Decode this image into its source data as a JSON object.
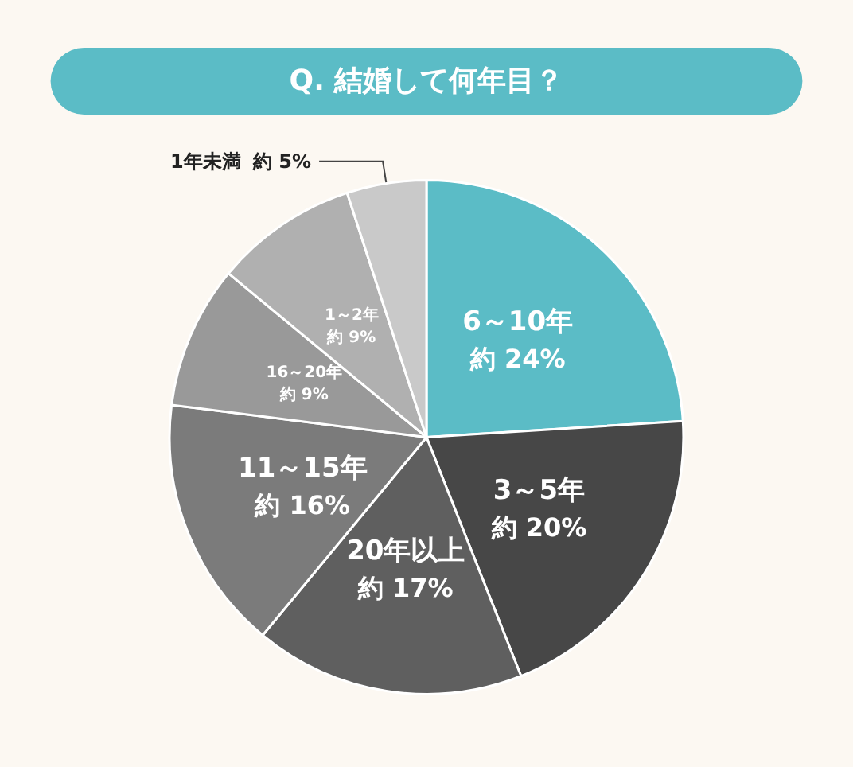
{
  "chart_data": {
    "type": "pie",
    "title": "Q. 結婚して何年目？",
    "categories": [
      "6～10年",
      "3～5年",
      "20年以上",
      "11～15年",
      "16～20年",
      "1～2年",
      "1年未満"
    ],
    "values": [
      24,
      20,
      17,
      16,
      9,
      9,
      5
    ],
    "value_labels": [
      "約 24%",
      "約 20%",
      "約 17%",
      "約 16%",
      "約 9%",
      "約 9%",
      "約 5%"
    ],
    "colors": [
      "#5bbcc6",
      "#474747",
      "#5f5f5f",
      "#7b7b7b",
      "#999999",
      "#b0b0b0",
      "#c9c9c9"
    ]
  }
}
